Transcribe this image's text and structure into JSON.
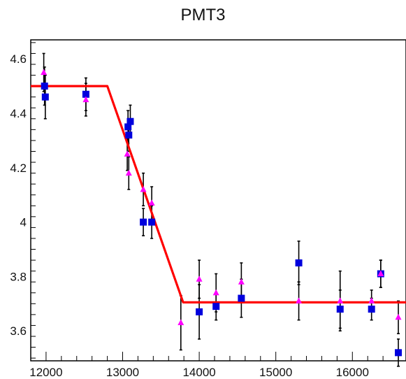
{
  "chart_data": {
    "type": "scatter",
    "title": "PMT3",
    "xlabel": "",
    "ylabel": "",
    "xlim": [
      11800,
      16700
    ],
    "ylim": [
      3.49,
      4.67
    ],
    "xticks": [
      12000,
      13000,
      14000,
      15000,
      16000
    ],
    "yticks": [
      3.6,
      3.8,
      4,
      4.2,
      4.4,
      4.6
    ],
    "xtick_labels": [
      "12000",
      "13000",
      "14000",
      "15000",
      "16000"
    ],
    "ytick_labels": [
      "3.6",
      "3.8",
      "4",
      "4.2",
      "4.4",
      "4.6"
    ],
    "grid": false,
    "colors": {
      "fit_line": "#ff0000",
      "square_series": "#0000dd",
      "triangle_series": "#ff00ff",
      "error_bars": "#000000"
    },
    "series": [
      {
        "marker": "square",
        "points": [
          {
            "x": 11980,
            "y": 4.5,
            "err": 0.07
          },
          {
            "x": 11990,
            "y": 4.46,
            "err": 0.08
          },
          {
            "x": 12520,
            "y": 4.47,
            "err": 0.06
          },
          {
            "x": 13070,
            "y": 4.35,
            "err": 0.06
          },
          {
            "x": 13080,
            "y": 4.32,
            "err": 0.06
          },
          {
            "x": 13100,
            "y": 4.37,
            "err": 0.06
          },
          {
            "x": 13270,
            "y": 4.0,
            "err": 0.05
          },
          {
            "x": 13380,
            "y": 4.0,
            "err": 0.06
          },
          {
            "x": 14000,
            "y": 3.67,
            "err": 0.1
          },
          {
            "x": 14220,
            "y": 3.69,
            "err": 0.05
          },
          {
            "x": 14550,
            "y": 3.72,
            "err": 0.07
          },
          {
            "x": 15300,
            "y": 3.85,
            "err": 0.08
          },
          {
            "x": 15840,
            "y": 3.68,
            "err": 0.07
          },
          {
            "x": 16250,
            "y": 3.68,
            "err": 0.04
          },
          {
            "x": 16370,
            "y": 3.81,
            "err": 0.05
          },
          {
            "x": 16600,
            "y": 3.52,
            "err": 0.05
          }
        ]
      },
      {
        "marker": "triangle",
        "points": [
          {
            "x": 11970,
            "y": 4.55,
            "err": 0.07
          },
          {
            "x": 12520,
            "y": 4.45,
            "err": 0.06
          },
          {
            "x": 13060,
            "y": 4.25,
            "err": 0.06
          },
          {
            "x": 13080,
            "y": 4.18,
            "err": 0.06
          },
          {
            "x": 13270,
            "y": 4.12,
            "err": 0.06
          },
          {
            "x": 13380,
            "y": 4.07,
            "err": 0.06
          },
          {
            "x": 13760,
            "y": 3.63,
            "err": 0.1
          },
          {
            "x": 14000,
            "y": 3.79,
            "err": 0.07
          },
          {
            "x": 14220,
            "y": 3.74,
            "err": 0.07
          },
          {
            "x": 14550,
            "y": 3.78,
            "err": 0.07
          },
          {
            "x": 15300,
            "y": 3.71,
            "err": 0.07
          },
          {
            "x": 15840,
            "y": 3.71,
            "err": 0.11
          },
          {
            "x": 16250,
            "y": 3.71,
            "err": 0.04
          },
          {
            "x": 16370,
            "y": 3.81,
            "err": 0.05
          },
          {
            "x": 16600,
            "y": 3.65,
            "err": 0.06
          }
        ]
      }
    ],
    "fit_line": [
      {
        "x": 11800,
        "y": 4.5
      },
      {
        "x": 12800,
        "y": 4.5
      },
      {
        "x": 13790,
        "y": 3.705
      },
      {
        "x": 16700,
        "y": 3.705
      }
    ]
  }
}
